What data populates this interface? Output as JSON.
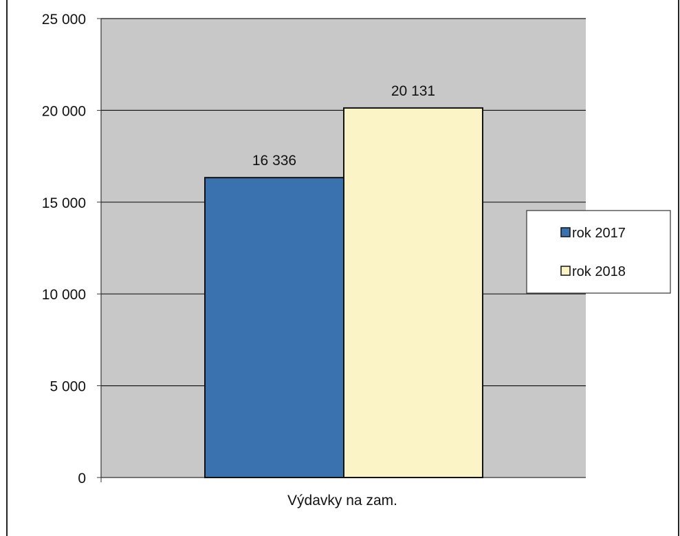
{
  "chart_data": {
    "type": "bar",
    "categories": [
      "Výdavky na zam."
    ],
    "series": [
      {
        "name": "rok 2017",
        "values": [
          16336
        ],
        "value_label": "16 336",
        "color": "#3a72b0"
      },
      {
        "name": "rok 2018",
        "values": [
          20131
        ],
        "value_label": "20 131",
        "color": "#fbf4c6"
      }
    ],
    "ylim": [
      0,
      25000
    ],
    "yticks": [
      0,
      5000,
      10000,
      15000,
      20000,
      25000
    ],
    "ytick_labels": [
      "0",
      "5 000",
      "10 000",
      "15 000",
      "20 000",
      "25 000"
    ],
    "grid": true,
    "legend_position": "right",
    "plot_background": "#c8c8c8"
  }
}
